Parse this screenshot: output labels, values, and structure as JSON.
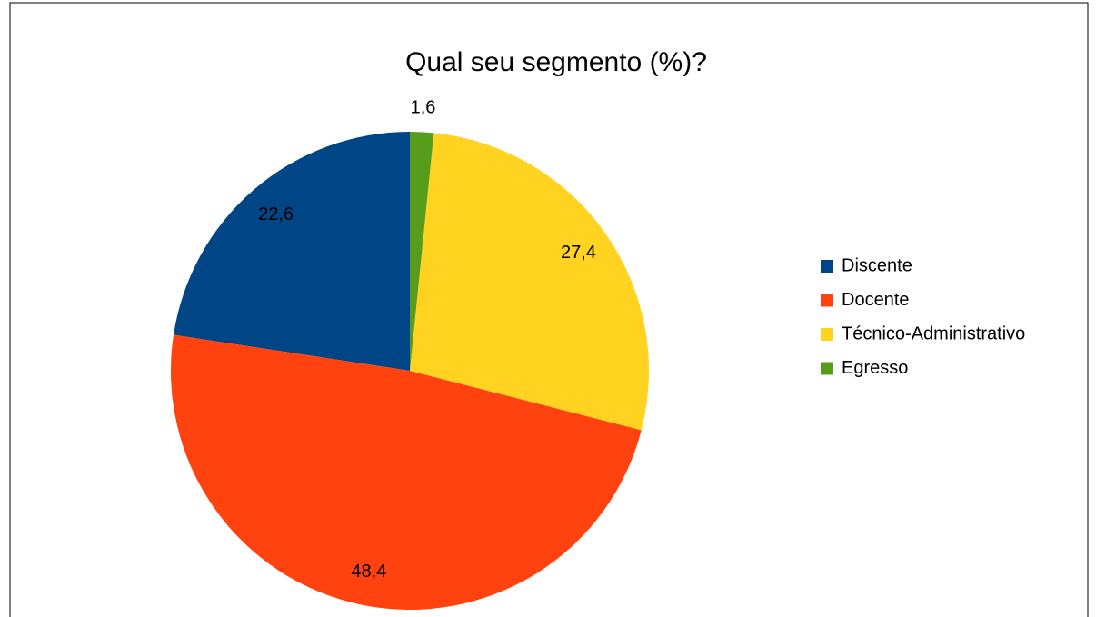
{
  "chart_data": {
    "type": "pie",
    "title": "Qual seu segmento (%)?",
    "categories": [
      "Discente",
      "Docente",
      "Técnico-Administrativo",
      "Egresso"
    ],
    "values": [
      22.6,
      48.4,
      27.4,
      1.6
    ],
    "value_labels": [
      "22,6",
      "48,4",
      "27,4",
      "1,6"
    ],
    "colors": [
      "#004586",
      "#ff420e",
      "#ffd320",
      "#579d1c"
    ],
    "legend": "right"
  }
}
